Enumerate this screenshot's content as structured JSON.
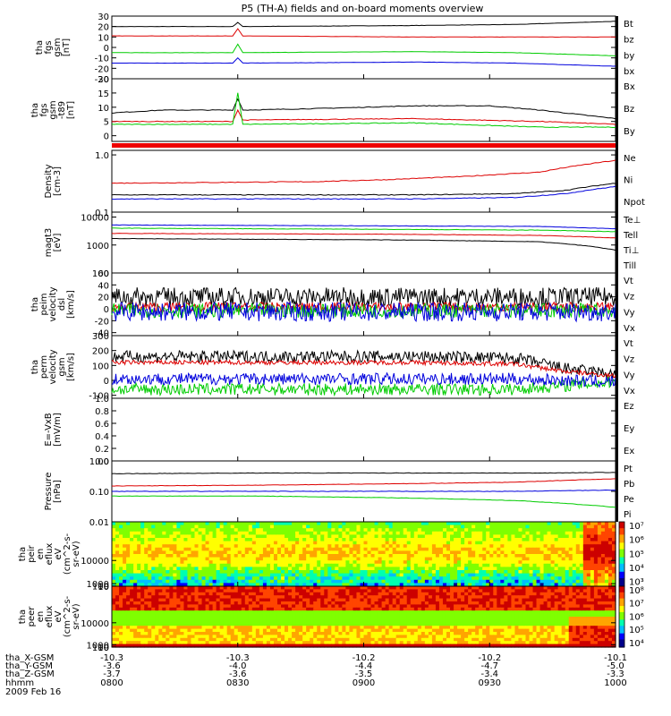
{
  "title": "P5 (TH-A) fields and on-board moments overview",
  "chart_data": {
    "type": "line",
    "time_ticks": [
      "0800",
      "0830",
      "0900",
      "0930",
      "1000"
    ],
    "date_label": "2009 Feb 16",
    "hhmm_label": "hhmm",
    "ephemeris": [
      {
        "name": "tha_X-GSM",
        "values": [
          "-10.3",
          "-10.3",
          "-10.2",
          "-10.2",
          "-10.1"
        ]
      },
      {
        "name": "tha_Y-GSM",
        "values": [
          "-3.6",
          "-4.0",
          "-4.4",
          "-4.7",
          "-5.0"
        ]
      },
      {
        "name": "tha_Z-GSM",
        "values": [
          "-3.7",
          "-3.6",
          "-3.5",
          "-3.4",
          "-3.3"
        ]
      }
    ],
    "panels": [
      {
        "id": "fgs",
        "ylabel": [
          "tha",
          "fgs",
          "gsm",
          "[nT]"
        ],
        "yticks": [
          "30",
          "20",
          "10",
          "0",
          "-10",
          "-20",
          "-30"
        ],
        "ylim": [
          -30,
          30
        ],
        "series": [
          {
            "name": "Bt",
            "color": "#000000",
            "x": [
              0,
              0.24,
              0.25,
              0.26,
              0.6,
              0.8,
              1
            ],
            "y": [
              20,
              20,
              24,
              20,
              21,
              22,
              25
            ]
          },
          {
            "name": "bz",
            "color": "#dd0000",
            "x": [
              0,
              0.24,
              0.25,
              0.26,
              0.6,
              0.8,
              1
            ],
            "y": [
              11,
              11,
              18,
              11,
              10,
              10,
              10
            ]
          },
          {
            "name": "by",
            "color": "#00cc00",
            "x": [
              0,
              0.24,
              0.25,
              0.26,
              0.6,
              0.8,
              1
            ],
            "y": [
              -5,
              -5,
              3,
              -5,
              -4,
              -5,
              -8
            ]
          },
          {
            "name": "bx",
            "color": "#0000dd",
            "x": [
              0,
              0.24,
              0.25,
              0.26,
              0.6,
              0.8,
              1
            ],
            "y": [
              -15,
              -15,
              -10,
              -15,
              -14,
              -15,
              -18
            ]
          }
        ]
      },
      {
        "id": "fgs-t89",
        "ylabel": [
          "tha",
          "fgs",
          "gsm",
          "-t89",
          "[nT]"
        ],
        "yticks": [
          "20",
          "15",
          "10",
          "5",
          "0"
        ],
        "ylim": [
          -2,
          20
        ],
        "series": [
          {
            "name": "Bx",
            "color": "#000000",
            "x": [
              0,
              0.1,
              0.24,
              0.25,
              0.26,
              0.4,
              0.6,
              0.75,
              0.85,
              0.95,
              1
            ],
            "y": [
              8,
              9,
              9,
              13,
              9,
              9.5,
              10.5,
              10.5,
              9,
              7,
              6
            ]
          },
          {
            "name": "Bz",
            "color": "#dd0000",
            "x": [
              0,
              0.24,
              0.25,
              0.26,
              0.6,
              0.85,
              1
            ],
            "y": [
              5,
              5,
              9,
              5.5,
              6,
              5,
              4
            ]
          },
          {
            "name": "By",
            "color": "#00cc00",
            "x": [
              0,
              0.24,
              0.25,
              0.26,
              0.6,
              0.85,
              1
            ],
            "y": [
              4,
              4,
              15,
              4,
              4.5,
              3,
              3
            ]
          }
        ]
      },
      {
        "id": "density",
        "ylabel": [
          "Density",
          "[cm-3]"
        ],
        "yticks": [
          "1.0",
          "0.1"
        ],
        "ylim": [
          0.1,
          1.2
        ],
        "log": true,
        "series": [
          {
            "name": "Ne",
            "color": "#dd0000",
            "x": [
              0,
              0.2,
              0.4,
              0.55,
              0.7,
              0.85,
              1
            ],
            "y": [
              0.32,
              0.33,
              0.34,
              0.37,
              0.42,
              0.5,
              0.8
            ]
          },
          {
            "name": "Ni",
            "color": "#000000",
            "x": [
              0,
              0.3,
              0.6,
              0.8,
              0.9,
              1
            ],
            "y": [
              0.2,
              0.2,
              0.2,
              0.21,
              0.24,
              0.32
            ]
          },
          {
            "name": "Npot",
            "color": "#0000dd",
            "x": [
              0,
              0.3,
              0.6,
              0.8,
              0.9,
              1
            ],
            "y": [
              0.17,
              0.17,
              0.17,
              0.18,
              0.21,
              0.28
            ]
          }
        ]
      },
      {
        "id": "temperature",
        "ylabel": [
          "magt3",
          "[eV]"
        ],
        "yticks": [
          "10000",
          "1000",
          "100"
        ],
        "ylim": [
          100,
          15000
        ],
        "log": true,
        "series": [
          {
            "name": "Te⊥",
            "color": "#dd0000",
            "x": [
              0,
              0.3,
              0.6,
              0.85,
              1
            ],
            "y": [
              2600,
              2500,
              2400,
              2200,
              1800
            ]
          },
          {
            "name": "Tell",
            "color": "#000000",
            "x": [
              0,
              0.3,
              0.6,
              0.85,
              0.95,
              1
            ],
            "y": [
              1700,
              1600,
              1500,
              1300,
              900,
              650
            ]
          },
          {
            "name": "Ti⊥",
            "color": "#0000dd",
            "x": [
              0,
              0.3,
              0.6,
              0.85,
              1
            ],
            "y": [
              5200,
              5000,
              4800,
              4600,
              3800
            ]
          },
          {
            "name": "Till",
            "color": "#00cc00",
            "x": [
              0,
              0.3,
              0.6,
              0.85,
              1
            ],
            "y": [
              4000,
              3800,
              3600,
              3400,
              3000
            ]
          }
        ]
      },
      {
        "id": "peim",
        "ylabel": [
          "tha",
          "peim",
          "velocity",
          "dsl",
          "[km/s]"
        ],
        "yticks": [
          "60",
          "40",
          "20",
          "0",
          "-20",
          "-40"
        ],
        "ylim": [
          -45,
          60
        ],
        "series": [
          {
            "name": "Vt",
            "color": "#000000",
            "x": [
              0,
              1
            ],
            "y": [
              20,
              20
            ],
            "noise": 16
          },
          {
            "name": "Vz",
            "color": "#dd0000",
            "x": [
              0,
              1
            ],
            "y": [
              3,
              3
            ],
            "noise": 8
          },
          {
            "name": "Vy",
            "color": "#00cc00",
            "x": [
              0,
              1
            ],
            "y": [
              -3,
              -3
            ],
            "noise": 12
          },
          {
            "name": "Vx",
            "color": "#0000dd",
            "x": [
              0,
              1
            ],
            "y": [
              -5,
              -5
            ],
            "noise": 16
          }
        ]
      },
      {
        "id": "perm",
        "ylabel": [
          "tha",
          "perm",
          "velocity",
          "gsm",
          "[km/s]"
        ],
        "yticks": [
          "300",
          "200",
          "100",
          "0",
          "-100"
        ],
        "ylim": [
          -120,
          300
        ],
        "series": [
          {
            "name": "Vt",
            "color": "#000000",
            "x": [
              0,
              0.6,
              0.8,
              0.9,
              1
            ],
            "y": [
              160,
              160,
              150,
              80,
              40
            ],
            "noise": 40
          },
          {
            "name": "Vz",
            "color": "#dd0000",
            "x": [
              0,
              0.6,
              0.8,
              0.9,
              1
            ],
            "y": [
              120,
              120,
              110,
              60,
              30
            ],
            "noise": 15
          },
          {
            "name": "Vy",
            "color": "#00cc00",
            "x": [
              0,
              0.8,
              1
            ],
            "y": [
              -60,
              -60,
              -10
            ],
            "noise": 40
          },
          {
            "name": "Vx",
            "color": "#0000dd",
            "x": [
              0,
              0.8,
              1
            ],
            "y": [
              10,
              10,
              -10
            ],
            "noise": 40
          }
        ]
      },
      {
        "id": "efield",
        "ylabel": [
          "E=-VxB",
          "[mV/m]"
        ],
        "yticks": [
          "1.0",
          "0.8",
          "0.6",
          "0.4",
          "0.2",
          "0.0"
        ],
        "ylim": [
          0,
          1
        ],
        "series": [
          {
            "name": "Ez",
            "color": "#dd0000",
            "x": [],
            "y": []
          },
          {
            "name": "Ey",
            "color": "#00cc00",
            "x": [],
            "y": []
          },
          {
            "name": "Ex",
            "color": "#0000dd",
            "x": [],
            "y": []
          }
        ]
      },
      {
        "id": "pressure",
        "ylabel": [
          "Pressure",
          "[nPa]"
        ],
        "yticks": [
          "1.00",
          "0.10",
          "0.01"
        ],
        "ylim": [
          0.01,
          1
        ],
        "log": true,
        "series": [
          {
            "name": "Pt",
            "color": "#000000",
            "x": [
              0,
              0.3,
              0.6,
              0.85,
              1
            ],
            "y": [
              0.38,
              0.4,
              0.4,
              0.4,
              0.42
            ]
          },
          {
            "name": "Pb",
            "color": "#dd0000",
            "x": [
              0,
              0.3,
              0.6,
              0.8,
              1
            ],
            "y": [
              0.15,
              0.16,
              0.18,
              0.2,
              0.26
            ]
          },
          {
            "name": "Pe",
            "color": "#00cc00",
            "x": [
              0,
              0.3,
              0.6,
              0.8,
              1
            ],
            "y": [
              0.07,
              0.07,
              0.06,
              0.05,
              0.03
            ]
          },
          {
            "name": "Pi",
            "color": "#0000dd",
            "x": [
              0,
              0.3,
              0.6,
              0.8,
              1
            ],
            "y": [
              0.1,
              0.1,
              0.1,
              0.1,
              0.11
            ]
          }
        ]
      },
      {
        "id": "peir",
        "type": "heatmap",
        "ylabel": [
          "tha",
          "peir",
          "en",
          "eflux",
          "eV",
          "(cm^2-s-",
          "sr-eV)"
        ],
        "yticks": [
          "10000",
          "1000",
          "100",
          "10"
        ],
        "ylim": [
          10,
          25000
        ],
        "colorbar": [
          "10⁷",
          "10⁶",
          "10⁵",
          "10⁴",
          "10³"
        ]
      },
      {
        "id": "peer",
        "type": "heatmap",
        "ylabel": [
          "tha",
          "peer",
          "en",
          "eflux",
          "eV",
          "(cm^2-s-",
          "sr-eV)"
        ],
        "yticks": [
          "10000",
          "1000",
          "100",
          "10"
        ],
        "ylim": [
          10,
          25000
        ],
        "colorbar": [
          "10⁸",
          "10⁷",
          "10⁶",
          "10⁵",
          "10⁴"
        ]
      }
    ]
  }
}
